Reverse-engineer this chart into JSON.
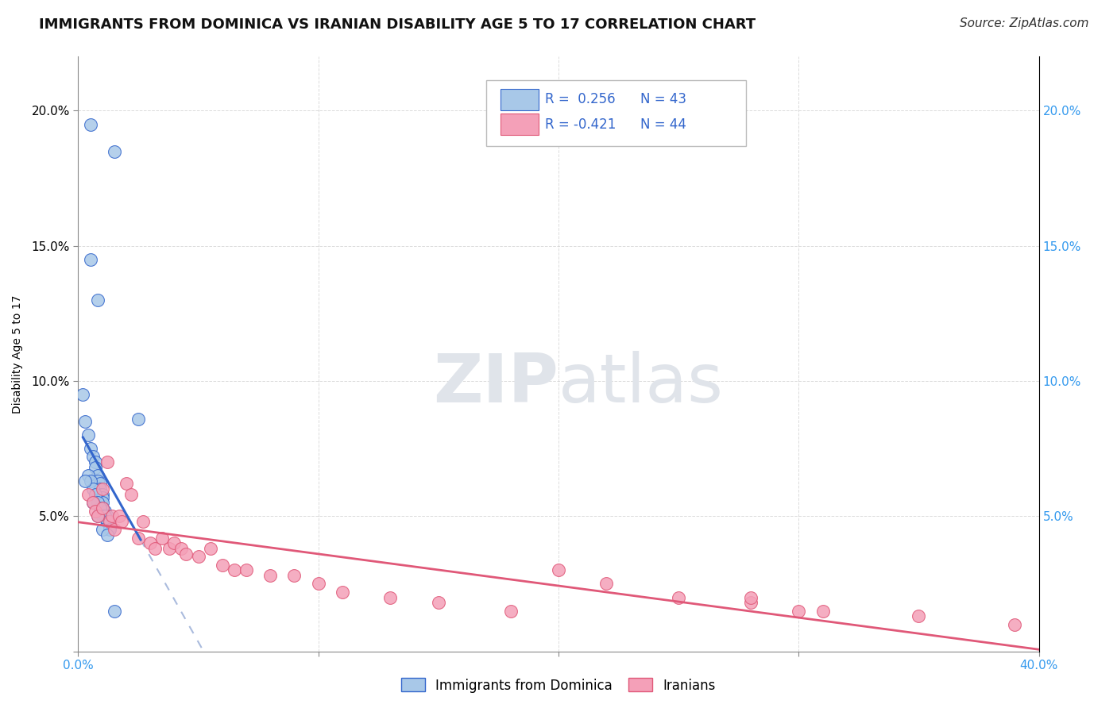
{
  "title": "IMMIGRANTS FROM DOMINICA VS IRANIAN DISABILITY AGE 5 TO 17 CORRELATION CHART",
  "source": "Source: ZipAtlas.com",
  "ylabel": "Disability Age 5 to 17",
  "legend_label1": "Immigrants from Dominica",
  "legend_label2": "Iranians",
  "r1": 0.256,
  "n1": 43,
  "r2": -0.421,
  "n2": 44,
  "xlim": [
    0.0,
    0.4
  ],
  "ylim": [
    0.0,
    0.22
  ],
  "color_blue": "#a8c8e8",
  "color_pink": "#f4a0b8",
  "line_blue": "#3366cc",
  "line_pink": "#e05878",
  "line_dashed": "#aabbdd",
  "background_color": "#ffffff",
  "grid_color": "#cccccc",
  "watermark_color": "#dedede",
  "blue_scatter_x": [
    0.005,
    0.015,
    0.005,
    0.008,
    0.002,
    0.003,
    0.004,
    0.005,
    0.006,
    0.007,
    0.007,
    0.008,
    0.008,
    0.009,
    0.009,
    0.009,
    0.01,
    0.01,
    0.01,
    0.01,
    0.011,
    0.011,
    0.012,
    0.012,
    0.013,
    0.013,
    0.004,
    0.005,
    0.006,
    0.007,
    0.008,
    0.009,
    0.01,
    0.011,
    0.012,
    0.013,
    0.025,
    0.003,
    0.006,
    0.008,
    0.01,
    0.012,
    0.015
  ],
  "blue_scatter_y": [
    0.195,
    0.185,
    0.145,
    0.13,
    0.095,
    0.085,
    0.08,
    0.075,
    0.072,
    0.07,
    0.068,
    0.065,
    0.063,
    0.062,
    0.06,
    0.058,
    0.058,
    0.057,
    0.055,
    0.053,
    0.052,
    0.05,
    0.05,
    0.048,
    0.048,
    0.046,
    0.065,
    0.063,
    0.06,
    0.058,
    0.055,
    0.053,
    0.05,
    0.05,
    0.048,
    0.045,
    0.086,
    0.063,
    0.055,
    0.05,
    0.045,
    0.043,
    0.015
  ],
  "pink_scatter_x": [
    0.004,
    0.006,
    0.007,
    0.008,
    0.01,
    0.01,
    0.012,
    0.013,
    0.014,
    0.015,
    0.017,
    0.018,
    0.02,
    0.022,
    0.025,
    0.027,
    0.03,
    0.032,
    0.035,
    0.038,
    0.04,
    0.043,
    0.045,
    0.05,
    0.055,
    0.06,
    0.065,
    0.07,
    0.08,
    0.09,
    0.1,
    0.11,
    0.13,
    0.15,
    0.18,
    0.2,
    0.22,
    0.25,
    0.28,
    0.31,
    0.35,
    0.28,
    0.3,
    0.39
  ],
  "pink_scatter_y": [
    0.058,
    0.055,
    0.052,
    0.05,
    0.06,
    0.053,
    0.07,
    0.048,
    0.05,
    0.045,
    0.05,
    0.048,
    0.062,
    0.058,
    0.042,
    0.048,
    0.04,
    0.038,
    0.042,
    0.038,
    0.04,
    0.038,
    0.036,
    0.035,
    0.038,
    0.032,
    0.03,
    0.03,
    0.028,
    0.028,
    0.025,
    0.022,
    0.02,
    0.018,
    0.015,
    0.03,
    0.025,
    0.02,
    0.018,
    0.015,
    0.013,
    0.02,
    0.015,
    0.01
  ],
  "title_fontsize": 13,
  "axis_label_fontsize": 10,
  "tick_fontsize": 11,
  "legend_fontsize": 12,
  "source_fontsize": 11
}
